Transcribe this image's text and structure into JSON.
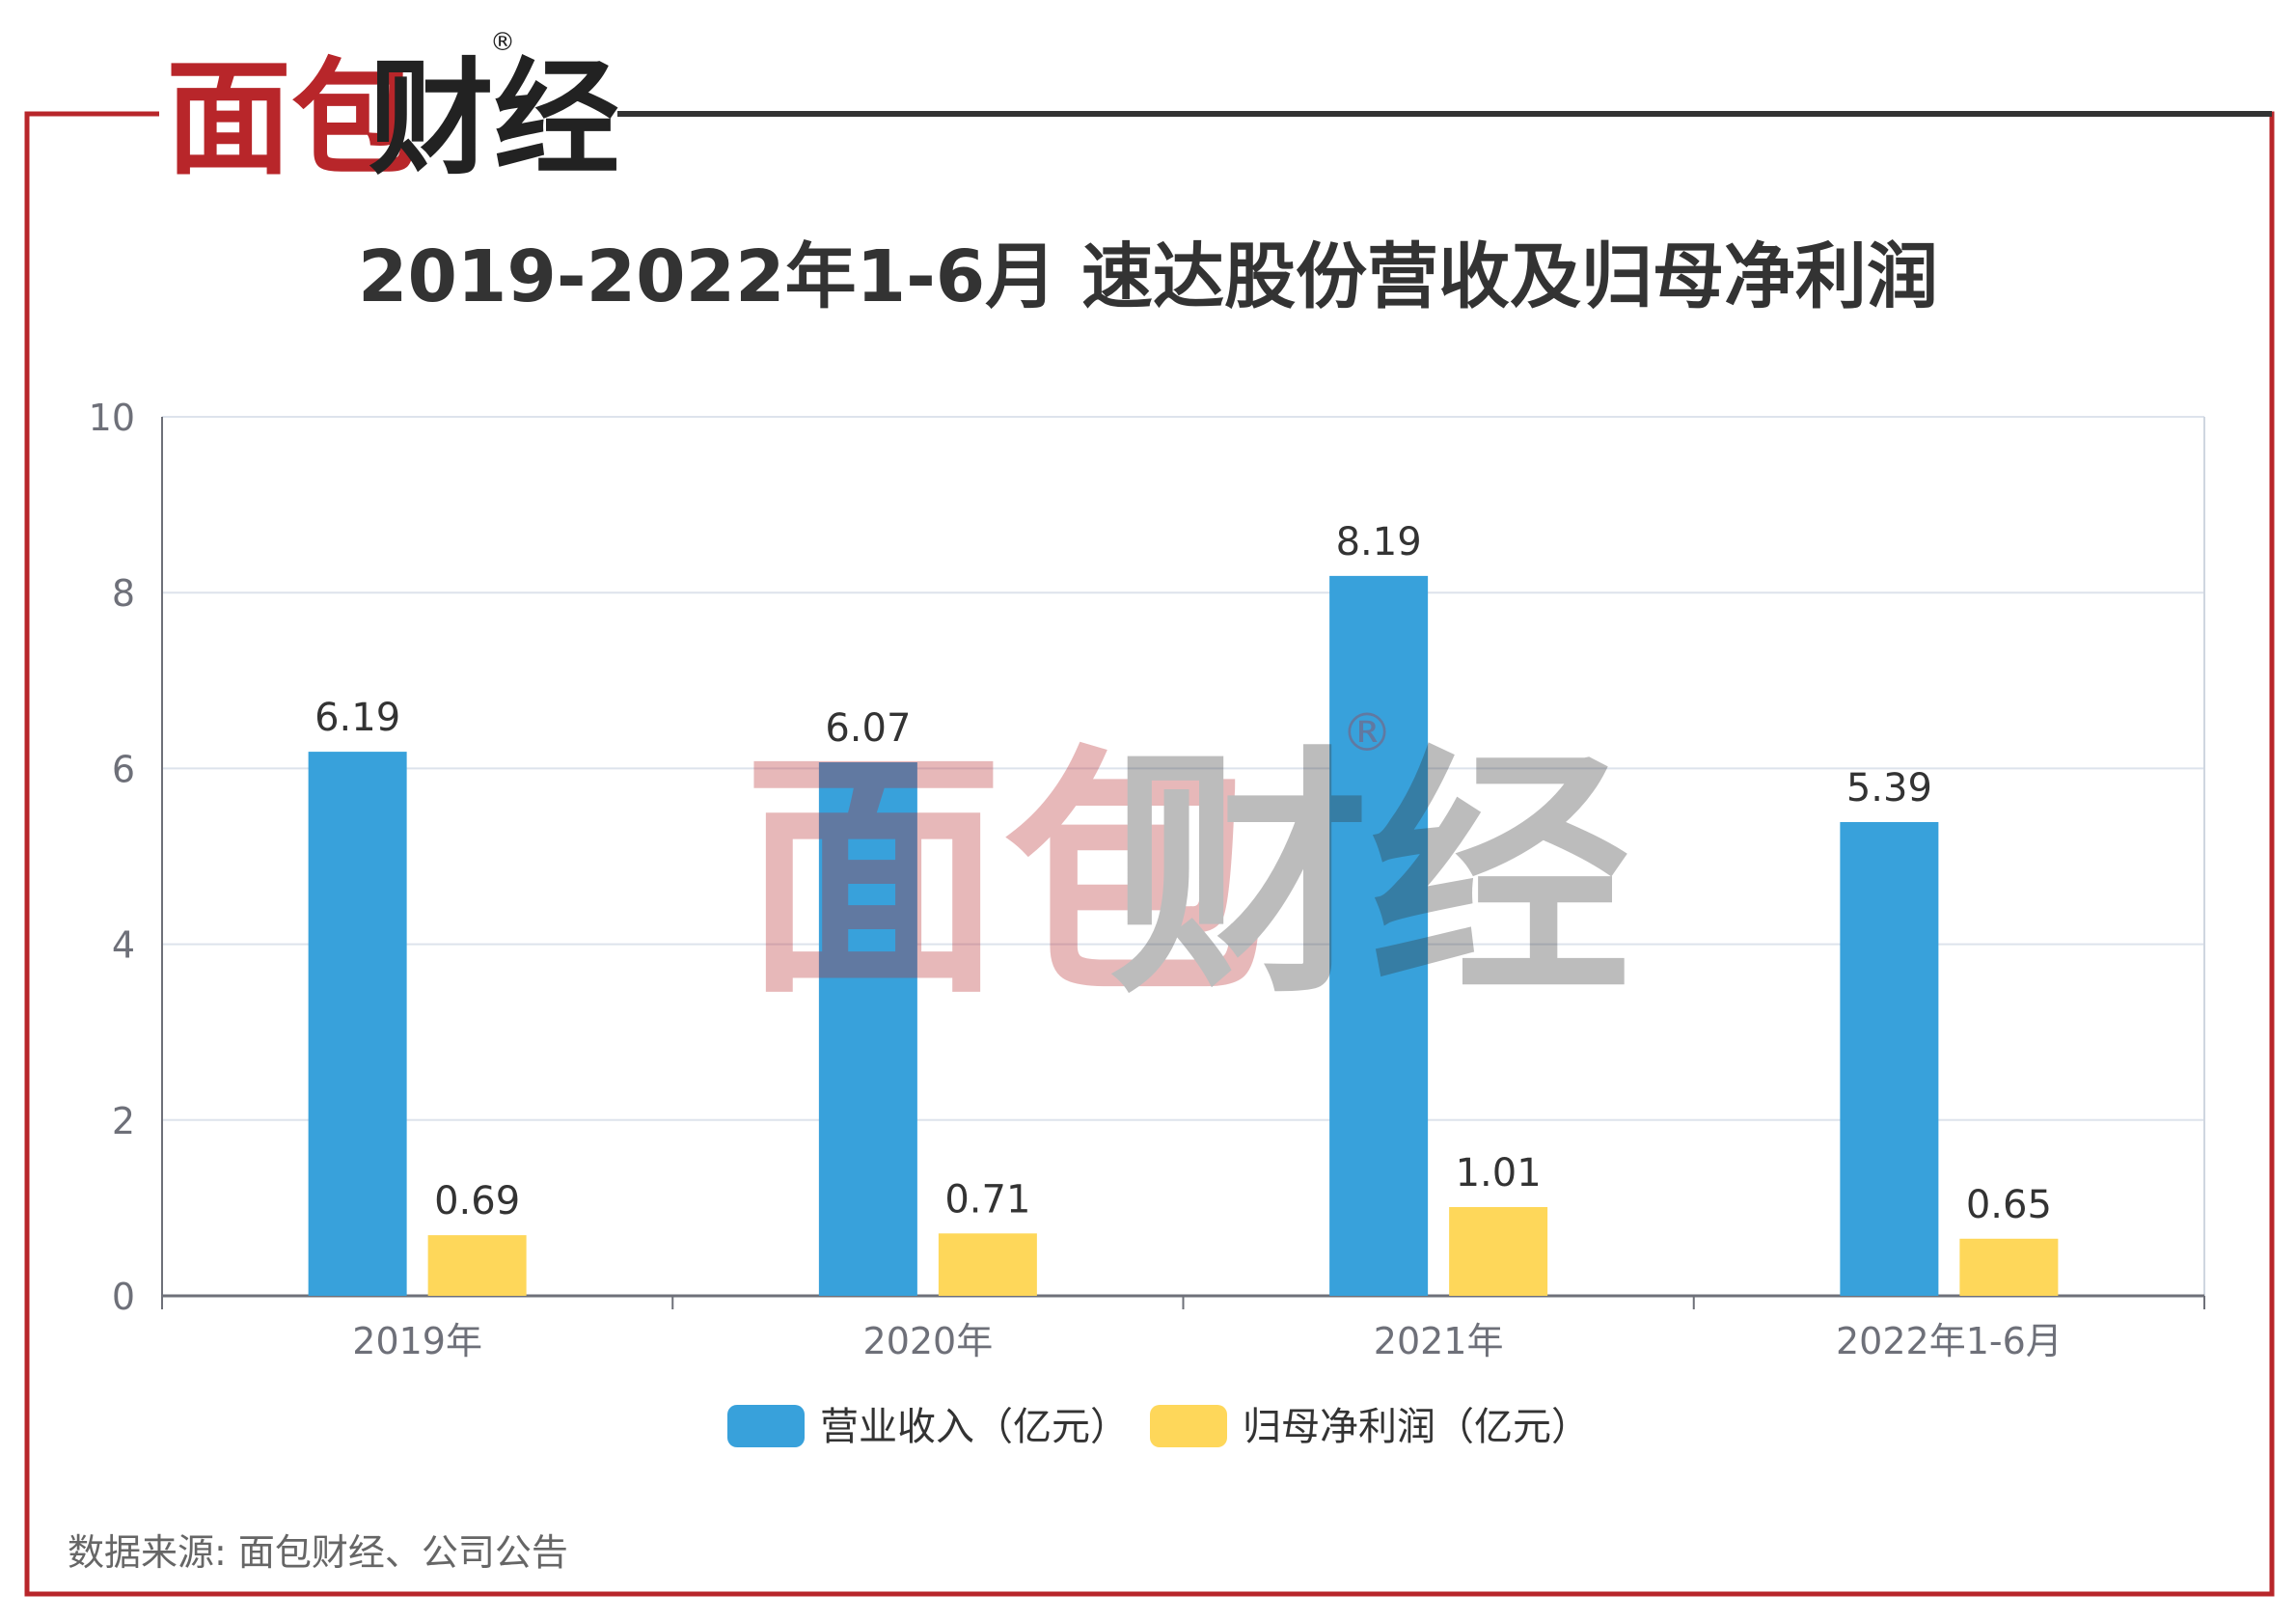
{
  "brand": {
    "name_red": "面包",
    "name_dark": "财经",
    "registered": "®",
    "red": "#b8262a",
    "dark": "#222222"
  },
  "source_text": "数据来源: 面包财经、公司公告",
  "colors": {
    "revenue": "#38a1db",
    "profit": "#fed75a",
    "frame_red": "#b8262a",
    "frame_dark": "#333333"
  },
  "chart_data": {
    "type": "bar",
    "title": "2019-2022年1-6月 速达股份营收及归母净利润",
    "categories": [
      "2019年",
      "2020年",
      "2021年",
      "2022年1-6月"
    ],
    "series": [
      {
        "name": "营业收入（亿元）",
        "values": [
          6.19,
          6.07,
          8.19,
          5.39
        ],
        "labels": [
          "6.19",
          "6.07",
          "8.19",
          "5.39"
        ]
      },
      {
        "name": "归母净利润（亿元）",
        "values": [
          0.69,
          0.71,
          1.01,
          0.65
        ],
        "labels": [
          "0.69",
          "0.71",
          "1.01",
          "0.65"
        ]
      }
    ],
    "ylim": [
      0,
      10
    ],
    "yticks": [
      "0",
      "2",
      "4",
      "6",
      "8",
      "10"
    ],
    "grid": true,
    "legend_position": "bottom"
  }
}
